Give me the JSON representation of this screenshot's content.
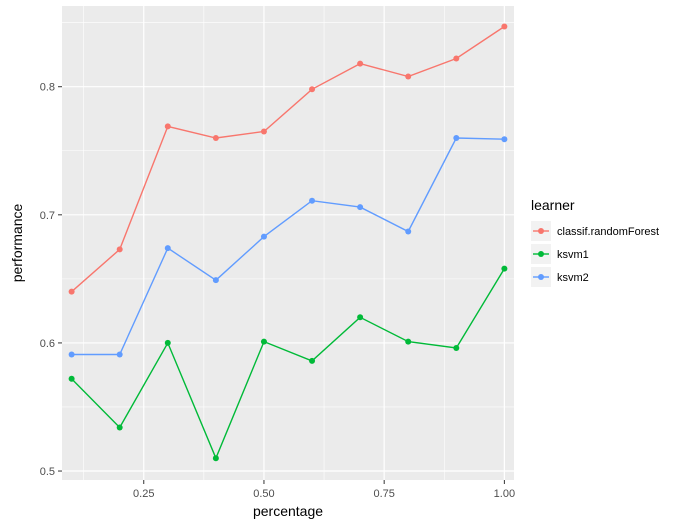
{
  "chart_data": {
    "type": "line",
    "xlabel": "percentage",
    "ylabel": "performance",
    "xlim": [
      0.08,
      1.02
    ],
    "ylim": [
      0.493,
      0.863
    ],
    "x_ticks": [
      0.25,
      0.5,
      0.75,
      1.0
    ],
    "x_tick_labels": [
      "0.25",
      "0.50",
      "0.75",
      "1.00"
    ],
    "y_ticks": [
      0.5,
      0.6,
      0.7,
      0.8
    ],
    "y_tick_labels": [
      "0.5",
      "0.6",
      "0.7",
      "0.8"
    ],
    "x": [
      0.1,
      0.2,
      0.3,
      0.4,
      0.5,
      0.6,
      0.7,
      0.8,
      0.9,
      1.0
    ],
    "grid": true,
    "legend": {
      "title": "learner",
      "placement": "right"
    },
    "series": [
      {
        "name": "classif.randomForest",
        "color": "#F8766D",
        "values": [
          0.64,
          0.673,
          0.769,
          0.76,
          0.765,
          0.798,
          0.818,
          0.808,
          0.822,
          0.847
        ]
      },
      {
        "name": "ksvm1",
        "color": "#00BA38",
        "values": [
          0.572,
          0.534,
          0.6,
          0.51,
          0.601,
          0.586,
          0.62,
          0.601,
          0.596,
          0.658
        ]
      },
      {
        "name": "ksvm2",
        "color": "#619CFF",
        "values": [
          0.591,
          0.591,
          0.674,
          0.649,
          0.683,
          0.711,
          0.706,
          0.687,
          0.76,
          0.759
        ]
      }
    ]
  }
}
